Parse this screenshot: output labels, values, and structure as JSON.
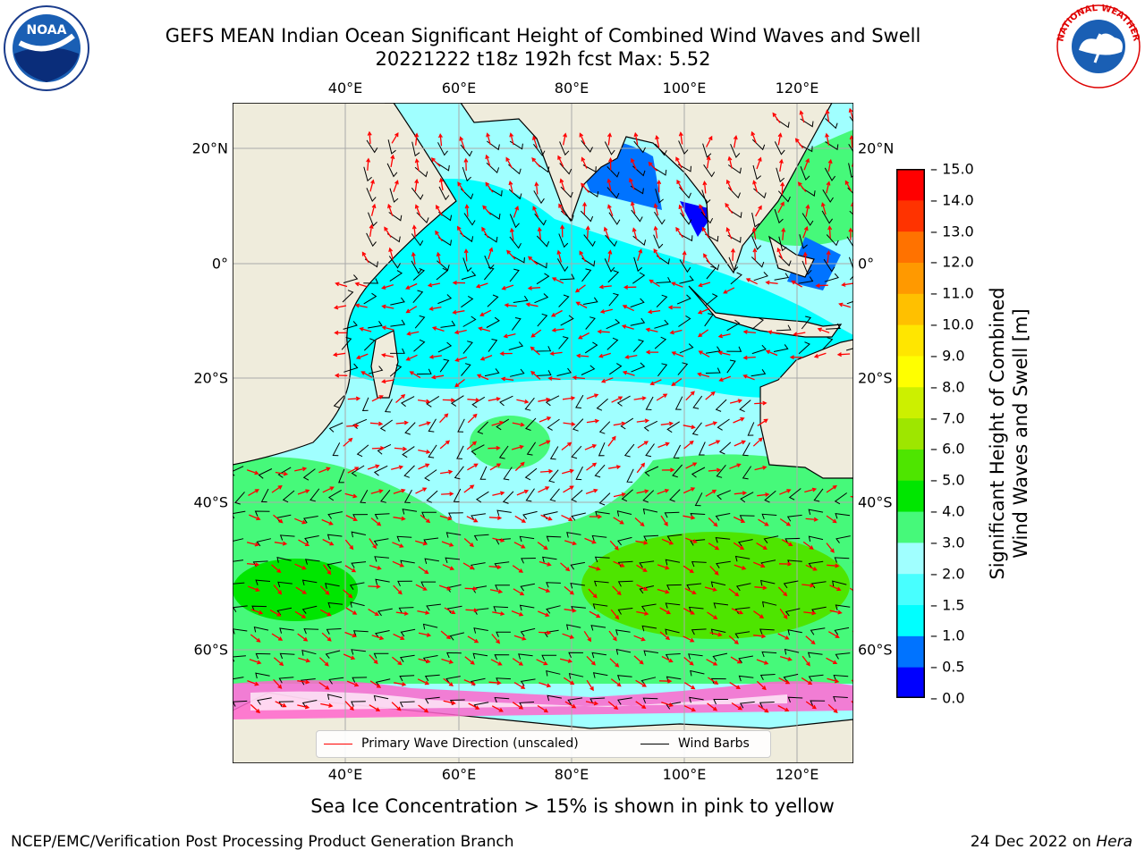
{
  "header": {
    "title_line1": "GEFS MEAN Indian Ocean Significant Height of Combined Wind Waves and Swell",
    "title_line2": "20221222 t18z 192h fcst   Max: 5.52"
  },
  "logos": {
    "left": {
      "name": "noaa-logo",
      "text": "NOAA"
    },
    "right": {
      "name": "nws-logo",
      "text": "NATIONAL WEATHER SERVICE"
    }
  },
  "map": {
    "lon_ticks": [
      "40°E",
      "60°E",
      "80°E",
      "100°E",
      "120°E"
    ],
    "lat_ticks": [
      "20°N",
      "0°",
      "20°S",
      "40°S",
      "60°S"
    ],
    "colors": {
      "land": "#efecdc",
      "ocean_base": "#00ffff",
      "wave_arrow": "#ff0000",
      "wind_barb": "#000000"
    }
  },
  "legend": {
    "primary_wave": "Primary Wave Direction (unscaled)",
    "wind_barbs": "Wind Barbs"
  },
  "colorbar": {
    "title_line1": "Significant Height of Combined",
    "title_line2": "Wind Waves and Swell [m]",
    "ticks": [
      "0.0",
      "0.5",
      "1.0",
      "1.5",
      "2.0",
      "3.0",
      "4.0",
      "5.0",
      "6.0",
      "7.0",
      "8.0",
      "9.0",
      "10.0",
      "11.0",
      "12.0",
      "13.0",
      "14.0",
      "15.0"
    ],
    "colors": [
      "#0000ff",
      "#0073ff",
      "#00ffff",
      "#48ffff",
      "#a0ffff",
      "#46f97a",
      "#00e600",
      "#4ee500",
      "#9ee600",
      "#ccf000",
      "#ffff00",
      "#ffe600",
      "#ffc000",
      "#ff9900",
      "#ff7200",
      "#ff3300",
      "#ff0000"
    ]
  },
  "caption": "Sea Ice Concentration > 15% is shown in pink to yellow",
  "footer": {
    "left": "NCEP/EMC/Verification Post Processing Product Generation Branch",
    "right_date": "24 Dec 2022 on ",
    "right_host": "Hera"
  }
}
